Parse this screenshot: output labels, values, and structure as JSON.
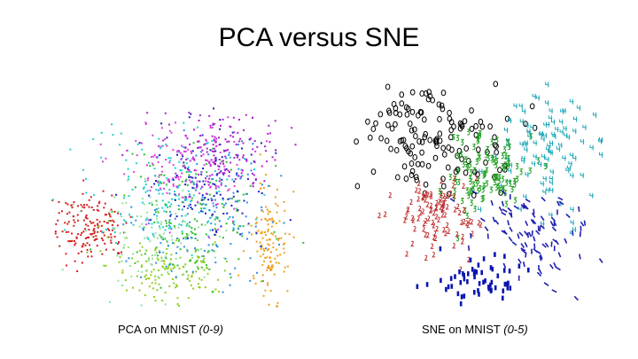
{
  "slide": {
    "title": "PCA versus SNE"
  },
  "panels": [
    {
      "caption_main": "PCA on MNIST ",
      "caption_range": "(0-9)"
    },
    {
      "caption_main": "SNE on MNIST ",
      "caption_range": "(0-5)"
    }
  ],
  "colors": {
    "pca_palette": [
      "#d62020",
      "#f0a020",
      "#8fd020",
      "#30c030",
      "#20d0d0",
      "#3090e0",
      "#2020c0",
      "#b020d0",
      "#e040e0",
      "#90e0a0"
    ],
    "sne_zero": "#000000",
    "sne_one": "#0a14b0",
    "sne_two": "#c03030",
    "sne_three": "#20a020",
    "sne_four": "#20a8b8",
    "sne_five": "#2020b0"
  },
  "icons": {
    "sne_glyph_shapes": [
      "ring",
      "stroke",
      "tick",
      "three",
      "four",
      "five"
    ]
  }
}
